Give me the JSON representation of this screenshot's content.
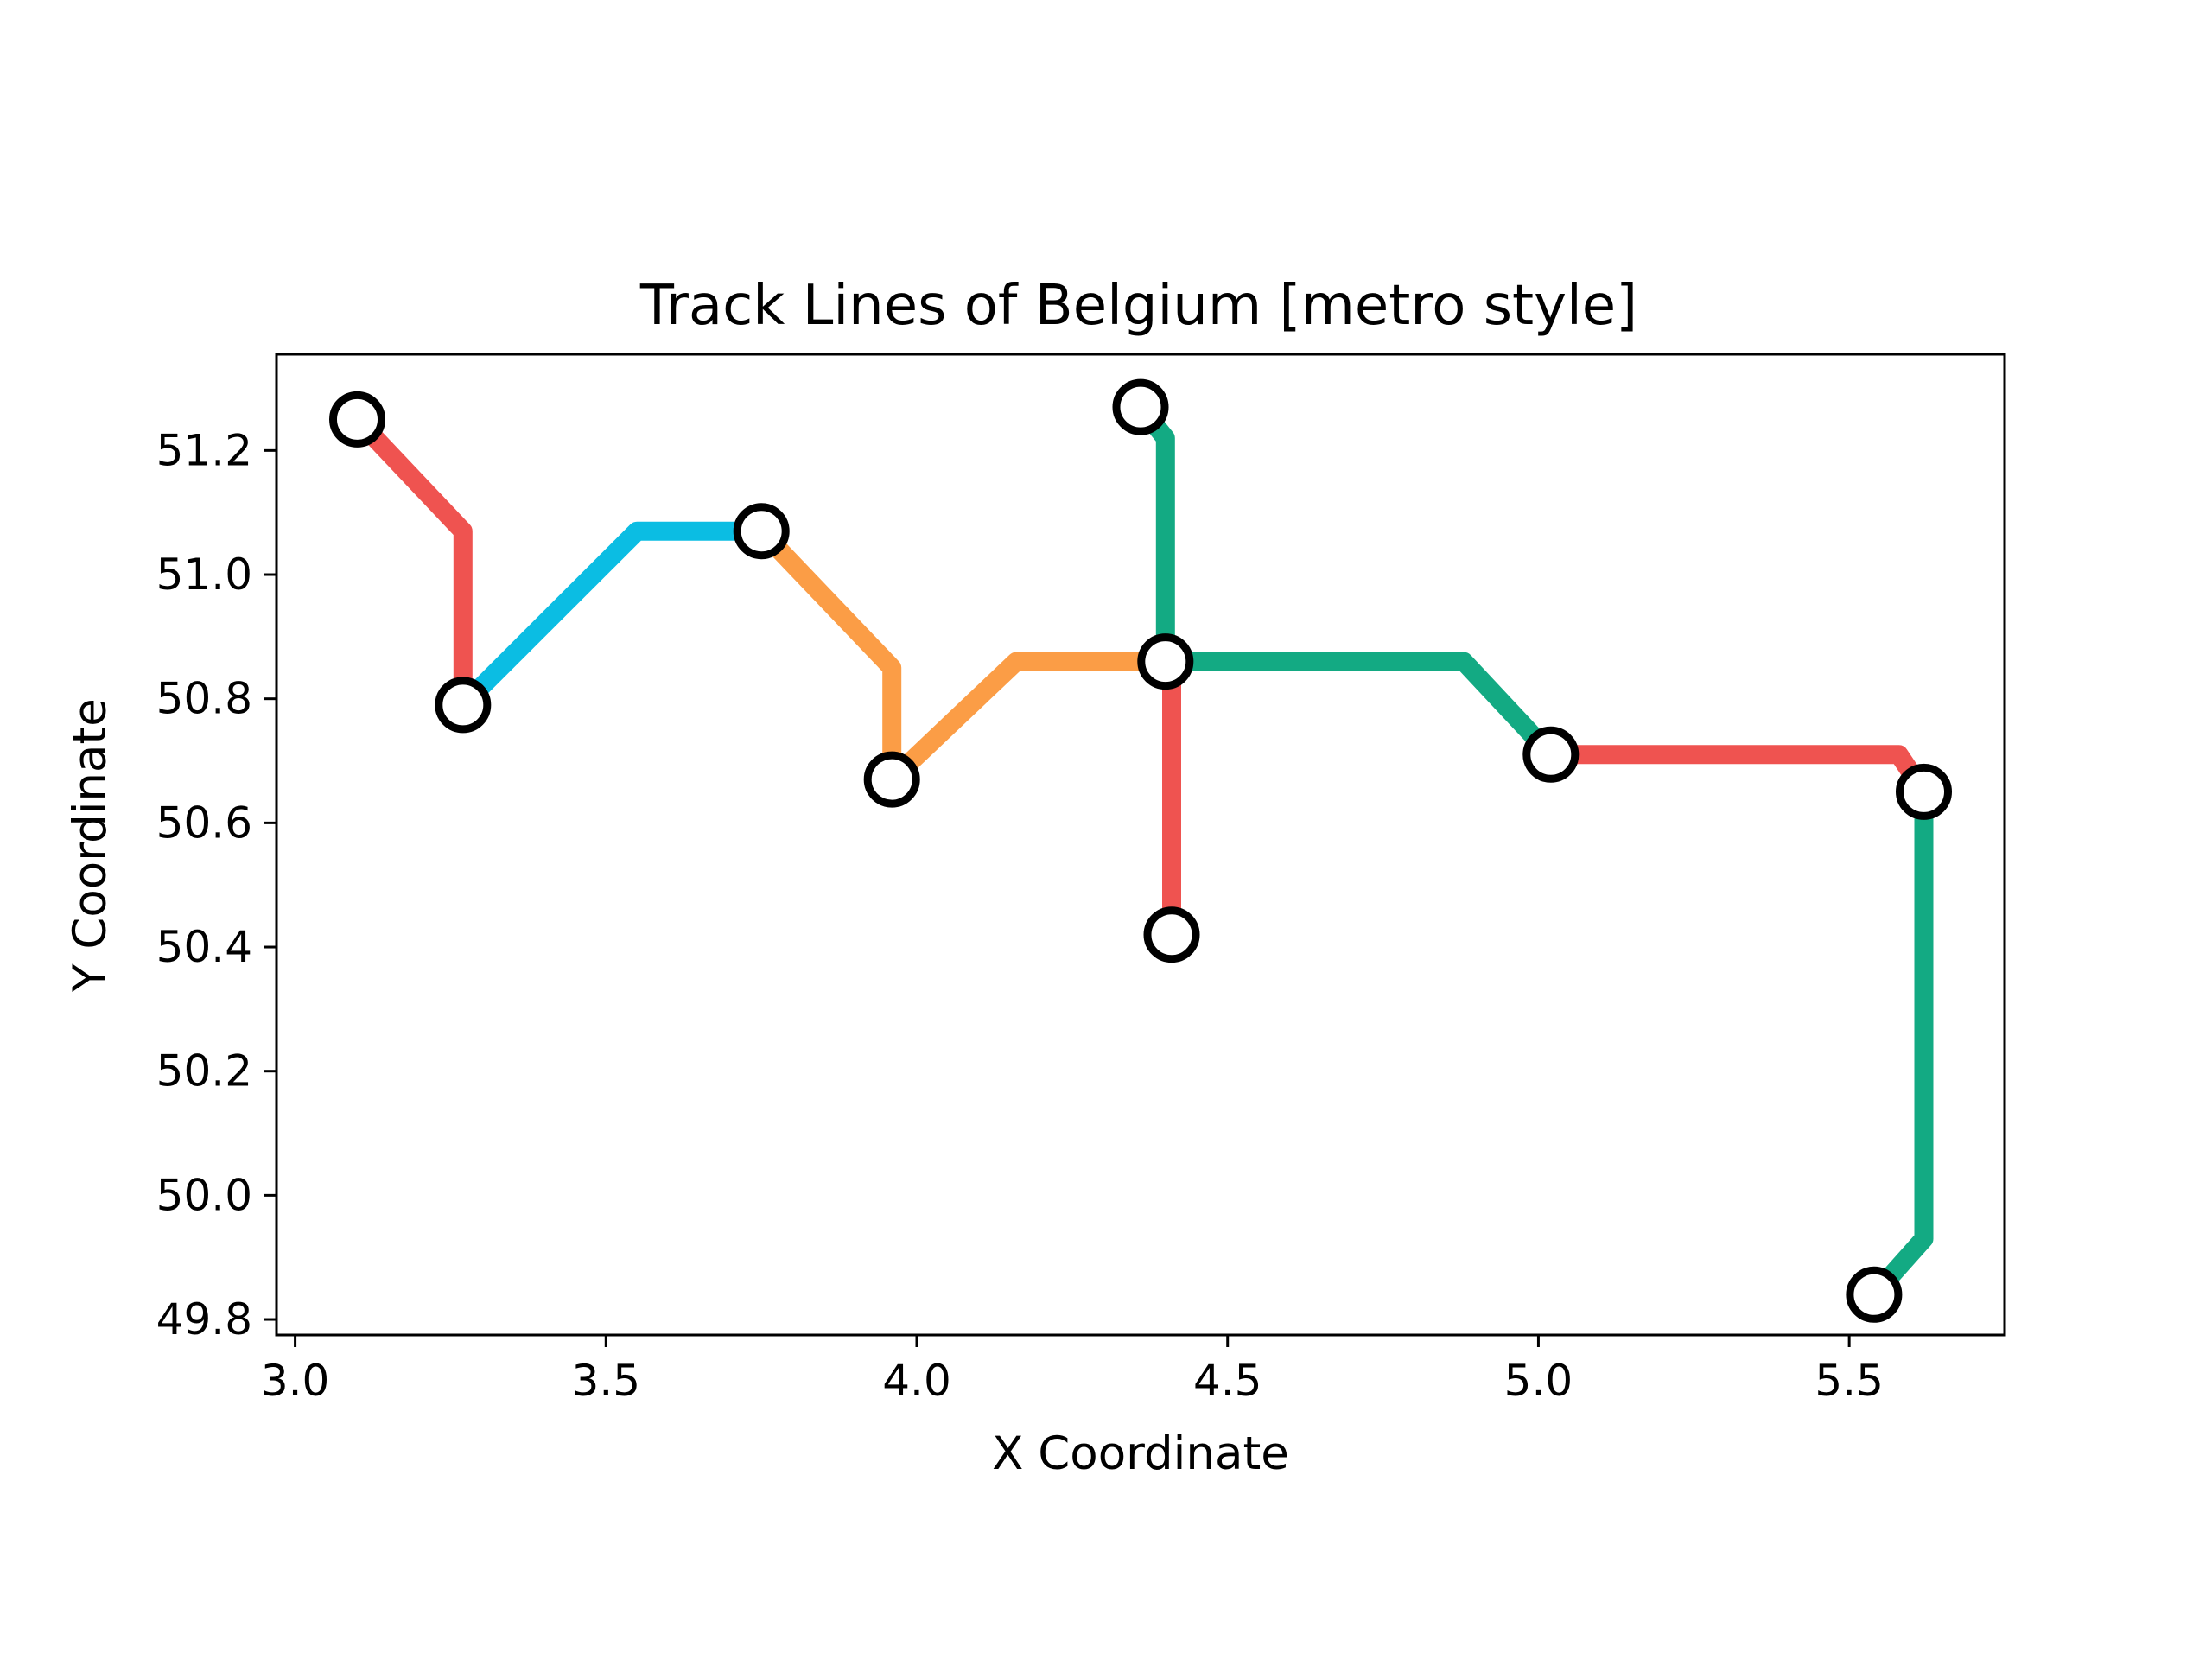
{
  "chart_data": {
    "type": "line",
    "title": "Track Lines of Belgium [metro style]",
    "xlabel": "X Coordinate",
    "ylabel": "Y Coordinate",
    "xlim": [
      2.97,
      5.75
    ],
    "ylim": [
      49.775,
      51.355
    ],
    "xticks": [
      "3.0",
      "3.5",
      "4.0",
      "4.5",
      "5.0",
      "5.5"
    ],
    "yticks": [
      "49.8",
      "50.0",
      "50.2",
      "50.4",
      "50.6",
      "50.8",
      "51.0",
      "51.2"
    ],
    "grid": false,
    "colors": {
      "red": "#ef5350",
      "cyan": "#0bbde3",
      "orange": "#fb9d46",
      "green": "#13aa83"
    },
    "series": [
      {
        "color": "#ef5350",
        "points": [
          [
            3.1,
            51.25
          ],
          [
            3.27,
            51.07
          ],
          [
            3.27,
            50.79
          ]
        ]
      },
      {
        "color": "#0bbde3",
        "points": [
          [
            3.27,
            50.79
          ],
          [
            3.55,
            51.07
          ],
          [
            3.75,
            51.07
          ]
        ]
      },
      {
        "color": "#fb9d46",
        "points": [
          [
            3.75,
            51.07
          ],
          [
            3.96,
            50.85
          ],
          [
            3.96,
            50.67
          ]
        ]
      },
      {
        "color": "#fb9d46",
        "points": [
          [
            3.96,
            50.67
          ],
          [
            4.16,
            50.86
          ],
          [
            4.4,
            50.86
          ]
        ]
      },
      {
        "color": "#13aa83",
        "points": [
          [
            4.36,
            51.27
          ],
          [
            4.4,
            51.22
          ],
          [
            4.4,
            50.86
          ]
        ]
      },
      {
        "color": "#ef5350",
        "points": [
          [
            4.4,
            50.86
          ],
          [
            4.41,
            50.84
          ],
          [
            4.41,
            50.42
          ]
        ]
      },
      {
        "color": "#13aa83",
        "points": [
          [
            4.4,
            50.86
          ],
          [
            4.88,
            50.86
          ],
          [
            5.02,
            50.71
          ]
        ]
      },
      {
        "color": "#ef5350",
        "points": [
          [
            5.02,
            50.71
          ],
          [
            5.58,
            50.71
          ],
          [
            5.62,
            50.65
          ]
        ]
      },
      {
        "color": "#13aa83",
        "points": [
          [
            5.62,
            50.65
          ],
          [
            5.62,
            49.93
          ],
          [
            5.54,
            49.84
          ]
        ]
      }
    ],
    "stations": [
      [
        3.1,
        51.25
      ],
      [
        3.27,
        50.79
      ],
      [
        3.75,
        51.07
      ],
      [
        3.96,
        50.67
      ],
      [
        4.36,
        51.27
      ],
      [
        4.4,
        50.86
      ],
      [
        4.41,
        50.42
      ],
      [
        5.02,
        50.71
      ],
      [
        5.62,
        50.65
      ],
      [
        5.54,
        49.84
      ]
    ]
  }
}
